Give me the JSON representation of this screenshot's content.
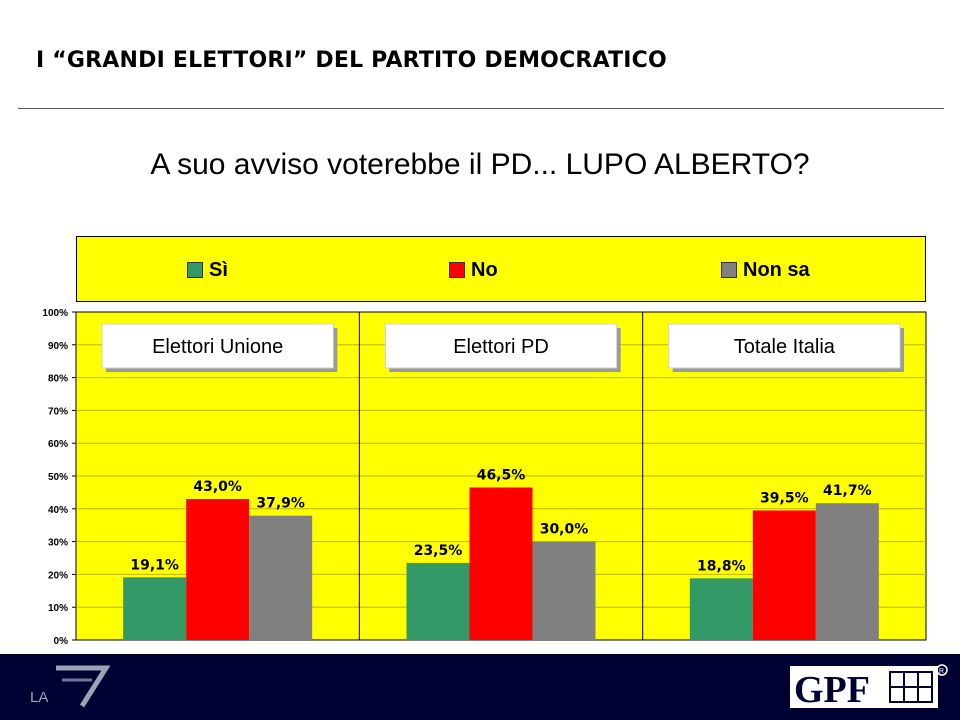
{
  "header": {
    "title": "I “GRANDI ELETTORI” DEL PARTITO DEMOCRATICO"
  },
  "question": "A suo avviso voterebbe il PD... LUPO ALBERTO?",
  "legend": [
    {
      "label": "Sì",
      "color": "#339966"
    },
    {
      "label": "No",
      "color": "#ff0000"
    },
    {
      "label": "Non sa",
      "color": "#808080"
    }
  ],
  "colors": {
    "plot_background": "#ffff00",
    "footer_background": "#000033"
  },
  "chart_data": {
    "type": "bar",
    "ylim": [
      0,
      100
    ],
    "ytick_labels": [
      "0%",
      "10%",
      "20%",
      "30%",
      "40%",
      "50%",
      "60%",
      "70%",
      "80%",
      "90%",
      "100%"
    ],
    "grid": true,
    "panels": [
      {
        "title": "Elettori Unione",
        "values": [
          19.1,
          43.0,
          37.9
        ],
        "labels": [
          "19,1%",
          "43,0%",
          "37,9%"
        ]
      },
      {
        "title": "Elettori PD",
        "values": [
          23.5,
          46.5,
          30.0
        ],
        "labels": [
          "23,5%",
          "46,5%",
          "30,0%"
        ]
      },
      {
        "title": "Totale Italia",
        "values": [
          18.8,
          39.5,
          41.7
        ],
        "labels": [
          "18,8%",
          "39,5%",
          "41,7%"
        ]
      }
    ],
    "series": [
      {
        "name": "Sì",
        "color": "#339966"
      },
      {
        "name": "No",
        "color": "#ff0000"
      },
      {
        "name": "Non sa",
        "color": "#808080"
      }
    ]
  },
  "logos": {
    "left": "LA 7",
    "right": "GPF"
  }
}
